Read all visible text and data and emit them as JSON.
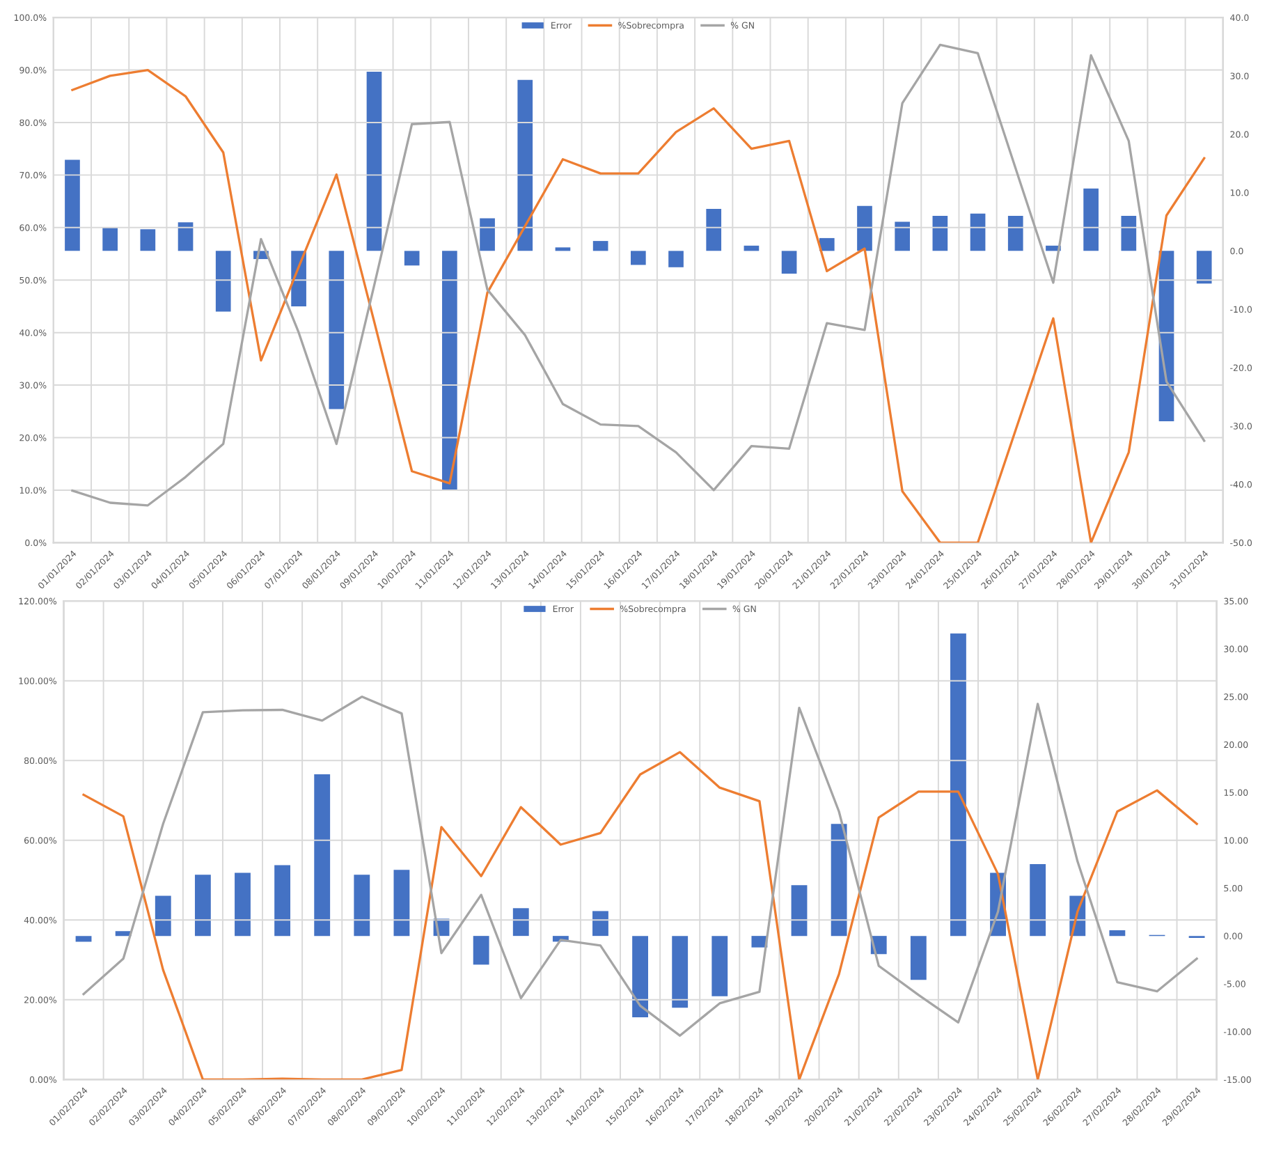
{
  "chart_data": [
    {
      "type": "bar",
      "legend": "top",
      "grid": true,
      "categories": [
        "01/01/2024",
        "02/01/2024",
        "03/01/2024",
        "04/01/2024",
        "05/01/2024",
        "06/01/2024",
        "07/01/2024",
        "08/01/2024",
        "09/01/2024",
        "10/01/2024",
        "11/01/2024",
        "12/01/2024",
        "13/01/2024",
        "14/01/2024",
        "15/01/2024",
        "16/01/2024",
        "17/01/2024",
        "18/01/2024",
        "19/01/2024",
        "20/01/2024",
        "21/01/2024",
        "22/01/2024",
        "23/01/2024",
        "24/01/2024",
        "25/01/2024",
        "26/01/2024",
        "27/01/2024",
        "28/01/2024",
        "29/01/2024",
        "30/01/2024",
        "31/01/2024"
      ],
      "ylim": [
        0,
        100
      ],
      "yticks": [
        {
          "value": 0,
          "label": "0.0%"
        },
        {
          "value": 10,
          "label": "10.0%"
        },
        {
          "value": 20,
          "label": "20.0%"
        },
        {
          "value": 30,
          "label": "30.0%"
        },
        {
          "value": 40,
          "label": "40.0%"
        },
        {
          "value": 50,
          "label": "50.0%"
        },
        {
          "value": 60,
          "label": "60.0%"
        },
        {
          "value": 70,
          "label": "70.0%"
        },
        {
          "value": 80,
          "label": "80.0%"
        },
        {
          "value": 90,
          "label": "90.0%"
        },
        {
          "value": 100,
          "label": "100.0%"
        }
      ],
      "y2lim": [
        -50,
        40
      ],
      "y2ticks": [
        {
          "value": -50,
          "label": "-50.0"
        },
        {
          "value": -40,
          "label": "-40.0"
        },
        {
          "value": -30,
          "label": "-30.0"
        },
        {
          "value": -20,
          "label": "-20.0"
        },
        {
          "value": -10,
          "label": "-10.0"
        },
        {
          "value": 0,
          "label": "0.0"
        },
        {
          "value": 10,
          "label": "10.0"
        },
        {
          "value": 20,
          "label": "20.0"
        },
        {
          "value": 30,
          "label": "30.0"
        },
        {
          "value": 40,
          "label": "40.0"
        }
      ],
      "series": [
        {
          "name": "Error",
          "axis": "y2",
          "color": "#4472c4",
          "values": [
            15.6,
            4.1,
            3.7,
            4.9,
            -10.4,
            -1.4,
            -9.5,
            -27.1,
            30.7,
            -2.5,
            -40.9,
            5.6,
            29.3,
            0.6,
            1.7,
            -2.4,
            -2.8,
            7.2,
            0.9,
            -3.9,
            2.2,
            7.7,
            5.0,
            6.0,
            6.4,
            6.0,
            0.9,
            10.7,
            6.0,
            -29.2,
            -5.6
          ]
        },
        {
          "name": "%Sobrecompra",
          "type": "line",
          "color": "#ed7d31",
          "values": [
            86.2,
            88.9,
            90.0,
            85.0,
            74.3,
            34.7,
            52.5,
            70.1,
            42.1,
            13.6,
            11.3,
            47.6,
            60.3,
            73.0,
            70.3,
            70.3,
            78.2,
            82.7,
            75.0,
            76.5,
            51.7,
            56.0,
            9.8,
            0,
            0,
            21.4,
            42.7,
            0,
            17.2,
            62.3,
            73.2
          ]
        },
        {
          "name": "% GN",
          "type": "line",
          "color": "#a5a5a5",
          "values": [
            9.9,
            7.6,
            7.1,
            12.5,
            18.8,
            57.8,
            40.0,
            18.8,
            49.0,
            79.7,
            80.1,
            48.2,
            39.5,
            26.4,
            22.5,
            22.2,
            17.2,
            10.0,
            18.4,
            17.9,
            41.8,
            40.5,
            83.7,
            94.8,
            93.2,
            71.3,
            49.5,
            92.8,
            76.5,
            30.7,
            19.4
          ]
        }
      ]
    },
    {
      "type": "bar",
      "legend": "top",
      "grid": true,
      "categories": [
        "01/02/2024",
        "02/02/2024",
        "03/02/2024",
        "04/02/2024",
        "05/02/2024",
        "06/02/2024",
        "07/02/2024",
        "08/02/2024",
        "09/02/2024",
        "10/02/2024",
        "11/02/2024",
        "12/02/2024",
        "13/02/2024",
        "14/02/2024",
        "15/02/2024",
        "16/02/2024",
        "17/02/2024",
        "18/02/2024",
        "19/02/2024",
        "20/02/2024",
        "21/02/2024",
        "22/02/2024",
        "23/02/2024",
        "24/02/2024",
        "25/02/2024",
        "26/02/2024",
        "27/02/2024",
        "28/02/2024",
        "29/02/2024"
      ],
      "ylim": [
        0,
        120
      ],
      "yticks": [
        {
          "value": 0,
          "label": "0.00%"
        },
        {
          "value": 20,
          "label": "20.00%"
        },
        {
          "value": 40,
          "label": "40.00%"
        },
        {
          "value": 60,
          "label": "60.00%"
        },
        {
          "value": 80,
          "label": "80.00%"
        },
        {
          "value": 100,
          "label": "100.00%"
        },
        {
          "value": 120,
          "label": "120.00%"
        }
      ],
      "y2lim": [
        -15,
        35
      ],
      "y2ticks": [
        {
          "value": -15,
          "label": "-15.00"
        },
        {
          "value": -10,
          "label": "-10.00"
        },
        {
          "value": -5,
          "label": "-5.00"
        },
        {
          "value": 0,
          "label": "0.00"
        },
        {
          "value": 5,
          "label": "5.00"
        },
        {
          "value": 10,
          "label": "10.00"
        },
        {
          "value": 15,
          "label": "15.00"
        },
        {
          "value": 20,
          "label": "20.00"
        },
        {
          "value": 25,
          "label": "25.00"
        },
        {
          "value": 30,
          "label": "30.00"
        },
        {
          "value": 35,
          "label": "35.00"
        }
      ],
      "series": [
        {
          "name": "Error",
          "axis": "y2",
          "color": "#4472c4",
          "values": [
            -0.6,
            0.5,
            4.2,
            6.4,
            6.6,
            7.4,
            16.9,
            6.4,
            6.9,
            1.8,
            -3.0,
            2.9,
            -0.6,
            2.6,
            -8.5,
            -7.5,
            -6.3,
            -1.2,
            5.3,
            11.7,
            -1.9,
            -4.6,
            31.6,
            6.6,
            7.5,
            4.2,
            0.6,
            0.1,
            -0.2
          ]
        },
        {
          "name": "%Sobrecompra",
          "type": "line",
          "color": "#ed7d31",
          "values": [
            71.4,
            66.0,
            27.5,
            0,
            0,
            0.2,
            0,
            0,
            2.4,
            63.3,
            51.0,
            68.3,
            58.9,
            61.8,
            76.5,
            82.1,
            73.2,
            69.8,
            0,
            26.4,
            65.7,
            72.2,
            72.2,
            51.5,
            0,
            42.1,
            67.2,
            72.5,
            64.1
          ]
        },
        {
          "name": "% GN",
          "type": "line",
          "color": "#a5a5a5",
          "values": [
            21.4,
            30.3,
            64.1,
            92.1,
            92.6,
            92.7,
            90.0,
            96.0,
            91.8,
            31.7,
            46.3,
            20.4,
            35.0,
            33.6,
            18.5,
            11.0,
            19.1,
            22.0,
            93.2,
            67.2,
            28.5,
            21.2,
            14.3,
            42.1,
            94.2,
            54.7,
            24.4,
            22.1,
            30.3
          ]
        }
      ]
    }
  ]
}
